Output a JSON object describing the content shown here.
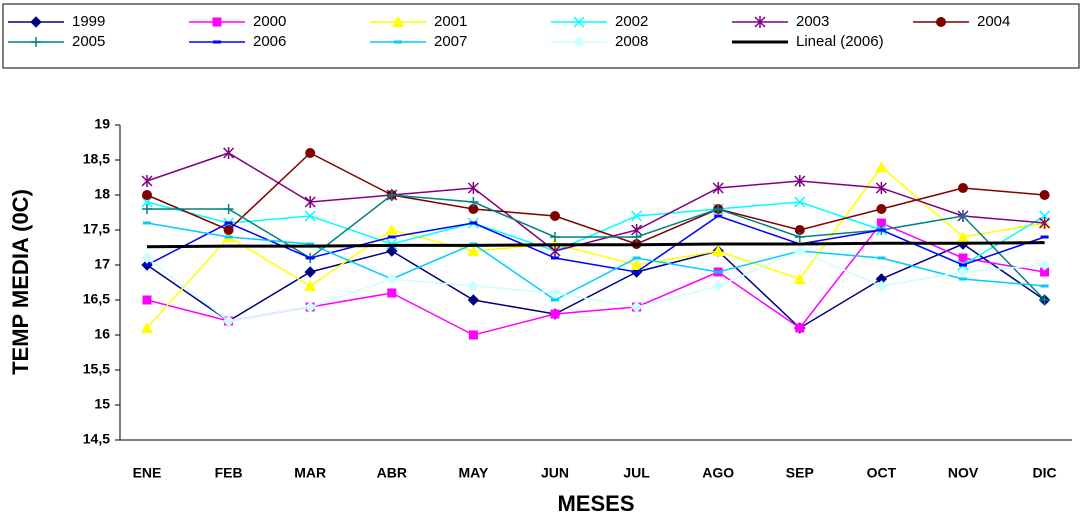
{
  "chart_data": {
    "type": "line",
    "x_label": "MESES",
    "y_label": "TEMP MEDIA (0C)",
    "categories": [
      "ENE",
      "FEB",
      "MAR",
      "ABR",
      "MAY",
      "JUN",
      "JUL",
      "AGO",
      "SEP",
      "OCT",
      "NOV",
      "DIC"
    ],
    "ylim": [
      14.5,
      19
    ],
    "yticks": [
      {
        "value": 14.5,
        "label": "14,5"
      },
      15,
      {
        "value": 15.5,
        "label": "15,5"
      },
      16,
      {
        "value": 16.5,
        "label": "16,5"
      },
      17,
      {
        "value": 17.5,
        "label": "17,5"
      },
      18,
      {
        "value": 18.5,
        "label": "18,5"
      },
      19
    ],
    "grid": false,
    "legend": "top",
    "series": [
      {
        "name": "1999",
        "color": "#000080",
        "marker": "diamond",
        "values": [
          17.0,
          16.2,
          16.9,
          17.2,
          16.5,
          16.3,
          16.9,
          17.2,
          16.1,
          16.8,
          17.3,
          16.5
        ]
      },
      {
        "name": "2000",
        "color": "#FF00FF",
        "marker": "square",
        "values": [
          16.5,
          16.2,
          16.4,
          16.6,
          16.0,
          16.3,
          16.4,
          16.9,
          16.1,
          17.6,
          17.1,
          16.9
        ]
      },
      {
        "name": "2001",
        "color": "#FFFF00",
        "marker": "triangle",
        "values": [
          16.1,
          17.4,
          16.7,
          17.5,
          17.2,
          17.3,
          17.0,
          17.2,
          16.8,
          18.4,
          17.4,
          17.6
        ]
      },
      {
        "name": "2002",
        "color": "#00FFFF",
        "marker": "x",
        "values": [
          17.9,
          17.6,
          17.7,
          17.3,
          17.6,
          17.2,
          17.7,
          17.8,
          17.9,
          17.5,
          17.0,
          17.7
        ]
      },
      {
        "name": "2003",
        "color": "#800080",
        "marker": "star",
        "values": [
          18.2,
          18.6,
          17.9,
          18.0,
          18.1,
          17.2,
          17.5,
          18.1,
          18.2,
          18.1,
          17.7,
          17.6
        ]
      },
      {
        "name": "2004",
        "color": "#800000",
        "marker": "circle",
        "values": [
          18.0,
          17.5,
          18.6,
          18.0,
          17.8,
          17.7,
          17.3,
          17.8,
          17.5,
          17.8,
          18.1,
          18.0
        ]
      },
      {
        "name": "2005",
        "color": "#008080",
        "marker": "plus",
        "values": [
          17.8,
          17.8,
          17.1,
          18.0,
          17.9,
          17.4,
          17.4,
          17.8,
          17.4,
          17.5,
          17.7,
          16.5
        ]
      },
      {
        "name": "2006",
        "color": "#0000FF",
        "marker": "dash",
        "values": [
          17.0,
          17.6,
          17.1,
          17.4,
          17.6,
          17.1,
          16.9,
          17.7,
          17.3,
          17.5,
          17.0,
          17.4
        ]
      },
      {
        "name": "2007",
        "color": "#00CCFF",
        "marker": "dash",
        "values": [
          17.6,
          17.4,
          17.3,
          16.8,
          17.3,
          16.5,
          17.1,
          16.9,
          17.2,
          17.1,
          16.8,
          16.7
        ]
      },
      {
        "name": "2008",
        "color": "#CCFFFF",
        "marker": "diamond",
        "values": [
          17.1,
          16.2,
          16.4,
          16.8,
          16.7,
          16.6,
          16.4,
          16.7,
          17.2,
          16.7,
          16.9,
          17.0
        ]
      },
      {
        "name": "Lineal (2006)",
        "color": "#000000",
        "marker": "none",
        "width": 3,
        "values": [
          17.26,
          17.27,
          17.27,
          17.28,
          17.28,
          17.29,
          17.29,
          17.3,
          17.3,
          17.31,
          17.31,
          17.32
        ]
      }
    ]
  }
}
